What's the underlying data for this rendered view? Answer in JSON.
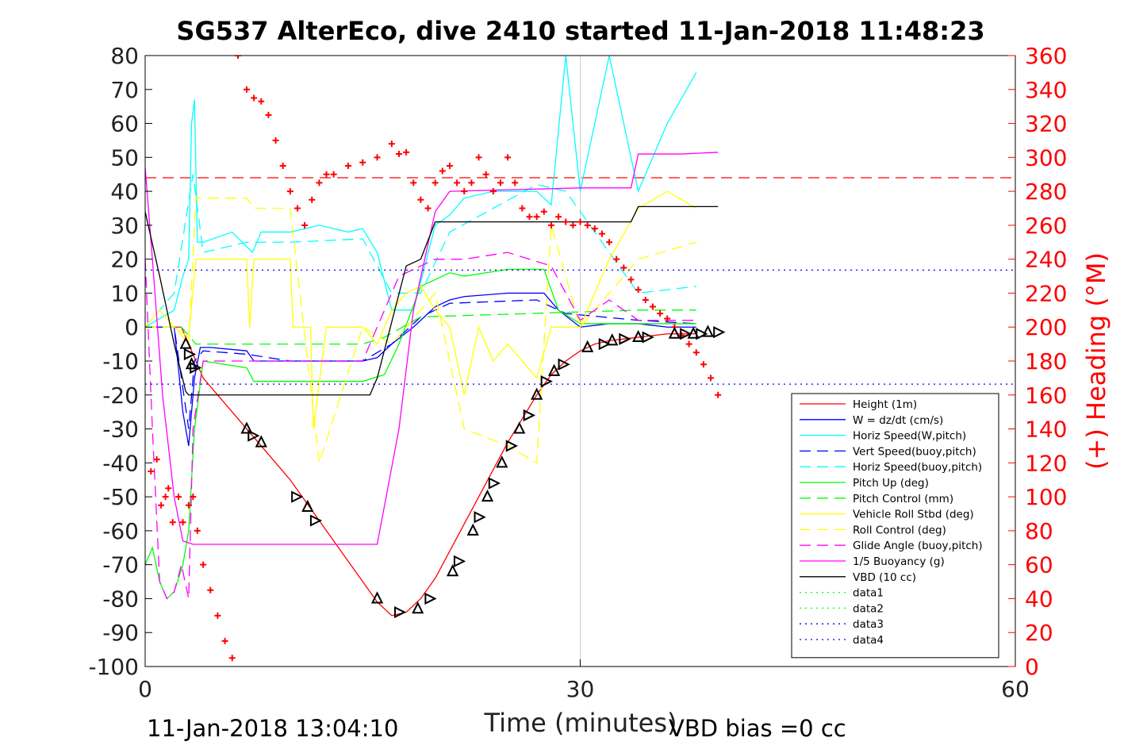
{
  "title": "SG537 AlterEco, dive 2410 started 11-Jan-2018 11:48:23",
  "footer": {
    "timestamp": "11-Jan-2018 13:04:10",
    "vbd_bias": "VBD bias =0 cc"
  },
  "colors": {
    "left_axis": "#000000",
    "right_axis": "#ff0000",
    "height": "#ff0000",
    "w": "#0000ff",
    "horiz_speed": "#00ffff",
    "pitch": "#00ff00",
    "roll": "#ffff00",
    "glide": "#ff00ff",
    "vbd": "#000000",
    "heading": "#ff0000"
  },
  "chart_data": {
    "type": "line",
    "title": "SG537 AlterEco, dive 2410 started 11-Jan-2018 11:48:23",
    "xlabel": "Time (minutes)",
    "ylabel": "",
    "y2label": "(+) Heading (°M)",
    "xlim": [
      0,
      60
    ],
    "ylim": [
      -100,
      80
    ],
    "y2lim": [
      0,
      360
    ],
    "xticks": [
      0,
      30,
      60
    ],
    "yticks": [
      -100,
      -90,
      -80,
      -70,
      -60,
      -50,
      -40,
      -30,
      -20,
      -10,
      0,
      10,
      20,
      30,
      40,
      50,
      60,
      70,
      80
    ],
    "y2ticks": [
      0,
      20,
      40,
      60,
      80,
      100,
      120,
      140,
      160,
      180,
      200,
      220,
      240,
      260,
      280,
      300,
      320,
      340,
      360
    ],
    "grid": "x-only at 30",
    "legend_position": "bottom-right",
    "series": [
      {
        "name": "Height (1m)",
        "color": "#ff0000",
        "style": "solid",
        "x": [
          0,
          2.5,
          3.3,
          4,
          5,
          6,
          7,
          8,
          9,
          10,
          11,
          12,
          13,
          14,
          15,
          16,
          17,
          18,
          19,
          20,
          21,
          22,
          23,
          24,
          25,
          26,
          27,
          28,
          29,
          30,
          31,
          32,
          33,
          34,
          35,
          36,
          37,
          38
        ],
        "y": [
          0,
          0,
          -8,
          -15,
          -20,
          -25,
          -30,
          -35,
          -40,
          -45,
          -51,
          -57,
          -63,
          -69,
          -75,
          -81,
          -85,
          -84,
          -80,
          -74,
          -66,
          -58,
          -50,
          -42,
          -34,
          -27,
          -20,
          -14,
          -10,
          -7,
          -5,
          -4,
          -3.5,
          -3,
          -2.5,
          -2,
          -2,
          -2
        ]
      },
      {
        "name": "W = dz/dt (cm/s)",
        "color": "#0000ff",
        "style": "solid",
        "x": [
          0,
          2,
          2.6,
          3,
          3.4,
          3.8,
          4.5,
          7,
          7.5,
          10,
          15,
          16,
          17,
          18.5,
          20,
          21,
          22,
          25,
          27.5,
          28.5,
          30,
          32,
          34,
          36,
          38
        ],
        "y": [
          0,
          0,
          -25,
          -35,
          -15,
          -6,
          -6,
          -7,
          -10,
          -10,
          -10,
          -9,
          -5,
          0,
          6,
          8,
          9,
          10,
          10,
          5,
          0,
          1,
          1,
          0,
          0
        ]
      },
      {
        "name": "Horiz Speed(W,pitch)",
        "color": "#00ffff",
        "style": "solid",
        "x": [
          0,
          2,
          2.6,
          3,
          3.2,
          3.4,
          3.6,
          4,
          6,
          7.4,
          8,
          10,
          12,
          14,
          15,
          16,
          17,
          18.5,
          20,
          21,
          22,
          24,
          27,
          28,
          29,
          30,
          32,
          34,
          36,
          38
        ],
        "y": [
          0,
          5,
          15,
          20,
          60,
          67,
          25,
          25,
          28,
          22,
          28,
          28,
          30,
          28,
          29,
          22,
          5,
          5,
          30,
          33,
          38,
          40,
          40,
          36,
          80,
          40,
          80,
          40,
          60,
          75
        ]
      },
      {
        "name": "Vert Speed(buoy,pitch)",
        "color": "#0000ff",
        "style": "dashed",
        "x": [
          0,
          2,
          3,
          3.4,
          4,
          7,
          10,
          15,
          17,
          19,
          21,
          27,
          29,
          34,
          38
        ],
        "y": [
          0,
          0,
          -30,
          -10,
          -7,
          -8,
          -10,
          -10,
          -5,
          3,
          7,
          8,
          4,
          2,
          1
        ]
      },
      {
        "name": "Horiz Speed(buoy,pitch)",
        "color": "#00ffff",
        "style": "dashed",
        "x": [
          0,
          2,
          3.3,
          4,
          7,
          10,
          15,
          17,
          19,
          21,
          27,
          29,
          34,
          38
        ],
        "y": [
          0,
          10,
          45,
          22,
          25,
          25,
          26,
          10,
          10,
          28,
          42,
          40,
          10,
          12
        ]
      },
      {
        "name": "Pitch Up (deg)",
        "color": "#00ff00",
        "style": "solid",
        "x": [
          0,
          0.5,
          1,
          1.5,
          2,
          2.6,
          3,
          3.4,
          4,
          7,
          7.5,
          10,
          15,
          16.5,
          17.5,
          19,
          20,
          21,
          22,
          25,
          27.5,
          28.5,
          30,
          34,
          38
        ],
        "y": [
          -70,
          -65,
          -75,
          -80,
          -78,
          -70,
          -60,
          -30,
          -10,
          -12,
          -16,
          -16,
          -16,
          -14,
          -5,
          12,
          14,
          16,
          15,
          17,
          17,
          5,
          1,
          1,
          1
        ]
      },
      {
        "name": "Pitch Control (mm)",
        "color": "#00ff00",
        "style": "dashed",
        "x": [
          0,
          2.5,
          3.5,
          15,
          16.5,
          19,
          34,
          38
        ],
        "y": [
          0,
          0,
          -5,
          -5,
          -3,
          3,
          5,
          5
        ]
      },
      {
        "name": "Vehicle Roll Stbd (deg)",
        "color": "#ffff00",
        "style": "solid",
        "x": [
          0,
          1,
          2,
          3,
          3.5,
          4,
          7,
          7.2,
          7.5,
          10,
          10.2,
          11.4,
          11.6,
          12.5,
          13,
          15,
          16,
          17,
          18,
          19,
          20,
          21,
          22,
          23,
          24,
          25,
          27,
          28,
          30,
          32,
          34,
          36,
          38
        ],
        "y": [
          0,
          5,
          0,
          -3,
          20,
          20,
          20,
          0,
          20,
          20,
          0,
          0,
          -30,
          0,
          0,
          0,
          -5,
          5,
          10,
          12,
          5,
          0,
          -20,
          0,
          -10,
          -5,
          -15,
          0,
          0,
          20,
          35,
          40,
          35
        ]
      },
      {
        "name": "Roll Control (deg)",
        "color": "#ffff00",
        "style": "dashed",
        "x": [
          0,
          2,
          3,
          3.5,
          7,
          7.5,
          10,
          12,
          15,
          17,
          20,
          22,
          25,
          27,
          28,
          30,
          34,
          38
        ],
        "y": [
          0,
          0,
          -5,
          38,
          38,
          35,
          35,
          -40,
          0,
          -5,
          10,
          -30,
          -35,
          -40,
          30,
          0,
          20,
          25
        ]
      },
      {
        "name": "Glide Angle (buoy,pitch)",
        "color": "#ff00ff",
        "style": "dashed",
        "x": [
          0,
          0.5,
          1,
          1.5,
          2,
          2.5,
          3,
          3.3,
          4,
          7,
          10,
          15,
          16.5,
          17.5,
          19,
          20,
          22,
          25,
          28,
          30,
          32,
          34,
          36,
          38
        ],
        "y": [
          20,
          -30,
          -75,
          -80,
          -78,
          -70,
          -80,
          -30,
          -10,
          -10,
          -10,
          -10,
          5,
          15,
          18,
          20,
          20,
          22,
          18,
          2,
          8,
          2,
          2,
          2
        ]
      },
      {
        "name": "1/5 Buoyancy (g)",
        "color": "#ff00ff",
        "style": "solid",
        "x": [
          0,
          0.5,
          1.2,
          2,
          2.6,
          3.3,
          4,
          16,
          17.5,
          18.5,
          20,
          21,
          30,
          33.5,
          34,
          37,
          39.5
        ],
        "y": [
          47,
          20,
          -20,
          -50,
          -63,
          -64,
          -64,
          -64,
          -30,
          5,
          34,
          40,
          41,
          41,
          51,
          51,
          51.5
        ]
      },
      {
        "name": "VBD (10 cc)",
        "color": "#000000",
        "style": "solid",
        "x": [
          0,
          1,
          2,
          2.8,
          3,
          15.5,
          16,
          18,
          19,
          20,
          21,
          33.5,
          34,
          39.5
        ],
        "y": [
          34,
          15,
          -5,
          -19,
          -20,
          -20,
          -15,
          18,
          20,
          31,
          31,
          31,
          35.5,
          35.5
        ]
      },
      {
        "name": "data1",
        "color": "#00ff00",
        "style": "dotted",
        "x": [],
        "y": []
      },
      {
        "name": "data2",
        "color": "#00ff00",
        "style": "dotted",
        "x": [],
        "y": []
      },
      {
        "name": "data3",
        "color": "#0000ff",
        "style": "dotted",
        "x": [
          0,
          60
        ],
        "y": [
          16.8,
          16.8
        ]
      },
      {
        "name": "data4",
        "color": "#0000ff",
        "style": "dotted",
        "x": [
          0,
          60
        ],
        "y": [
          -16.8,
          -16.8
        ]
      }
    ],
    "reference_lines": [
      {
        "color": "#ff0000",
        "style": "dashed",
        "x": [
          0,
          60
        ],
        "y": [
          44,
          44
        ]
      }
    ],
    "heading_points": {
      "axis": "right",
      "color": "#ff0000",
      "marker": "+",
      "x": [
        0.4,
        0.8,
        1.1,
        1.4,
        1.6,
        1.9,
        2.3,
        2.6,
        3,
        3.3,
        3.6,
        4,
        4.5,
        5,
        5.5,
        6,
        6.4,
        6.6,
        7,
        7.5,
        8,
        8.5,
        9,
        9.5,
        10,
        10.5,
        11,
        11.5,
        12,
        12.5,
        13,
        14,
        15,
        16,
        17,
        17.5,
        18,
        18.5,
        19,
        19.5,
        20,
        20.5,
        21,
        21.5,
        22,
        22.5,
        23,
        23.5,
        24,
        24.5,
        25,
        25.5,
        26,
        26.5,
        27,
        27.5,
        28,
        28.5,
        29,
        29.5,
        30,
        30.5,
        31,
        31.5,
        32,
        32.5,
        33,
        33.5,
        34,
        34.5,
        35,
        35.5,
        36,
        36.5,
        37,
        37.5,
        38,
        38.5,
        39,
        39.5
      ],
      "y": [
        115,
        122,
        95,
        100,
        105,
        85,
        100,
        85,
        95,
        100,
        80,
        60,
        45,
        30,
        15,
        5,
        360,
        365,
        340,
        335,
        333,
        325,
        310,
        295,
        280,
        270,
        260,
        275,
        285,
        290,
        290,
        295,
        297,
        300,
        308,
        302,
        303,
        285,
        275,
        270,
        285,
        292,
        295,
        285,
        280,
        285,
        300,
        290,
        280,
        285,
        300,
        285,
        270,
        265,
        265,
        268,
        260,
        265,
        262,
        260,
        262,
        260,
        258,
        255,
        250,
        240,
        235,
        228,
        222,
        216,
        212,
        208,
        205,
        200,
        195,
        190,
        185,
        178,
        170,
        160
      ]
    },
    "waypoint_markers": {
      "marker": "triangle",
      "color": "#000000",
      "x": [
        2.8,
        3,
        3.2,
        3.4,
        7,
        7.4,
        8,
        10.4,
        11.2,
        11.7,
        16,
        17.5,
        18.8,
        19.6,
        21.2,
        21.6,
        22.6,
        23,
        23.6,
        24,
        24.6,
        25.2,
        25.8,
        26.4,
        27,
        27.6,
        28.2,
        28.8,
        30.5,
        31.6,
        32.2,
        33,
        34,
        34.6,
        36.5,
        37.2,
        37.8,
        38.3,
        38.8,
        39.5
      ],
      "y": [
        -5,
        -8,
        -11,
        -12,
        -30,
        -32,
        -34,
        -50,
        -53,
        -57,
        -80,
        -84,
        -83,
        -80,
        -72,
        -69,
        -60,
        -56,
        -50,
        -46,
        -40,
        -35,
        -30,
        -26,
        -20,
        -16,
        -13,
        -11,
        -6,
        -5,
        -4,
        -3.5,
        -3,
        -3,
        -2,
        -2,
        -2,
        -2,
        -1.5,
        -1.5
      ]
    }
  }
}
